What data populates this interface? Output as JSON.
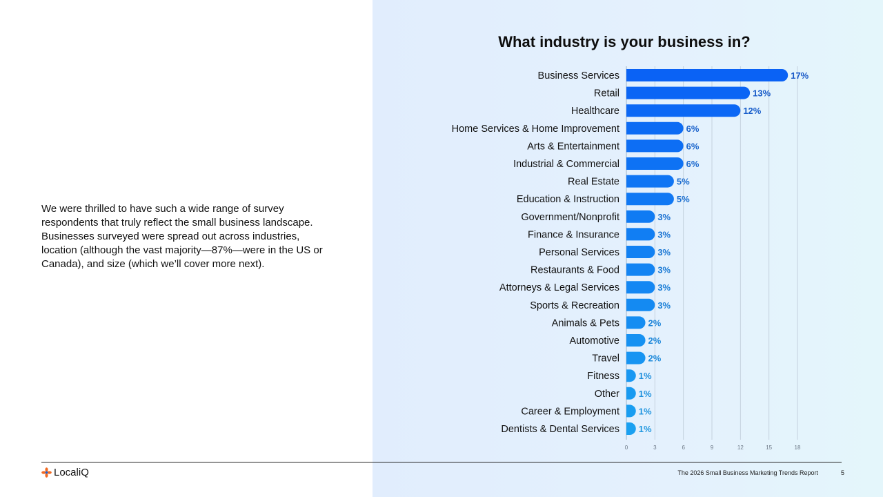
{
  "intro": {
    "text": "We were thrilled to have such a wide range of survey respondents that truly reflect the small business landscape. Businesses surveyed were spread out across industries, location (although the vast majority—87%—were in the US or Canada), and size (which we’ll cover more next)."
  },
  "colors": {
    "bar_dark": "#0a62f5",
    "bar_light": "#1aa0f1",
    "label_dark": "#1858c7",
    "label_light": "#1f97e0"
  },
  "chart_data": {
    "type": "bar",
    "orientation": "horizontal",
    "title": "What industry is your business in?",
    "categories": [
      "Business Services",
      "Retail",
      "Healthcare",
      "Home Services & Home Improvement",
      "Arts & Entertainment",
      "Industrial & Commercial",
      "Real Estate",
      "Education & Instruction",
      "Government/Nonprofit",
      "Finance & Insurance",
      "Personal Services",
      "Restaurants & Food",
      "Attorneys & Legal Services",
      "Sports & Recreation",
      "Animals & Pets",
      "Automotive",
      "Travel",
      "Fitness",
      "Other",
      "Career & Employment",
      "Dentists & Dental Services"
    ],
    "values": [
      17,
      13,
      12,
      6,
      6,
      6,
      5,
      5,
      3,
      3,
      3,
      3,
      3,
      3,
      2,
      2,
      2,
      1,
      1,
      1,
      1
    ],
    "value_labels": [
      "17%",
      "13%",
      "12%",
      "6%",
      "6%",
      "6%",
      "5%",
      "5%",
      "3%",
      "3%",
      "3%",
      "3%",
      "3%",
      "3%",
      "2%",
      "2%",
      "2%",
      "1%",
      "1%",
      "1%",
      "1%"
    ],
    "xlim": [
      0,
      18
    ],
    "xticks": [
      0,
      3,
      6,
      9,
      12,
      15,
      18
    ],
    "grid": true,
    "xlabel": "",
    "ylabel": ""
  },
  "footer": {
    "logo_text": "LocaliQ",
    "report_title": "The 2026 Small Business Marketing Trends Report",
    "page_number": "5"
  }
}
